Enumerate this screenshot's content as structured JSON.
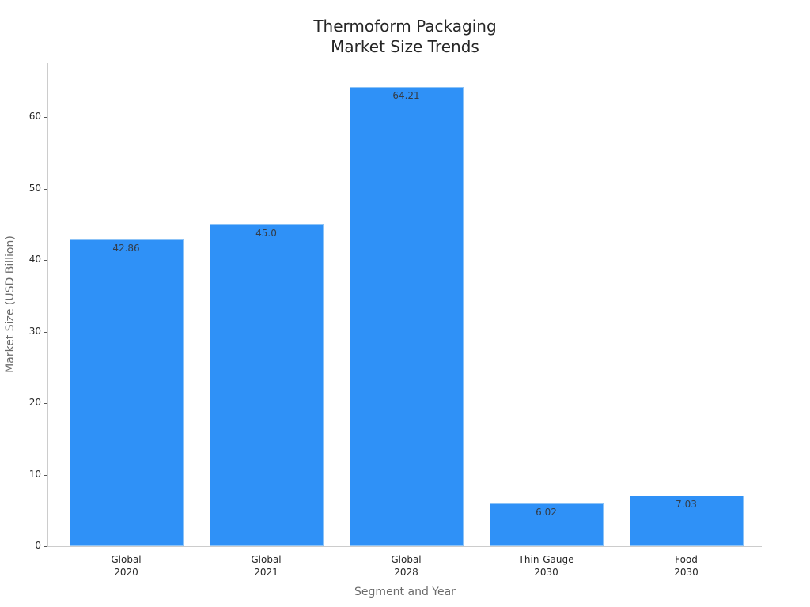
{
  "chart": {
    "title_line1": "Thermoform Packaging",
    "title_line2": "Market Size Trends",
    "xlabel": "Segment and Year",
    "ylabel": "Market Size (USD Billion)",
    "bar_color": "#2f91f7"
  },
  "chart_data": {
    "type": "bar",
    "title": "Thermoform Packaging Market Size Trends",
    "xlabel": "Segment and Year",
    "ylabel": "Market Size (USD Billion)",
    "categories": [
      "Global 2020",
      "Global 2021",
      "Global 2028",
      "Thin-Gauge 2030",
      "Food 2030"
    ],
    "category_lines": [
      [
        "Global",
        "2020"
      ],
      [
        "Global",
        "2021"
      ],
      [
        "Global",
        "2028"
      ],
      [
        "Thin-Gauge",
        "2030"
      ],
      [
        "Food",
        "2030"
      ]
    ],
    "values": [
      42.86,
      45.0,
      64.21,
      6.02,
      7.03
    ],
    "value_labels": [
      "42.86",
      "45.0",
      "64.21",
      "6.02",
      "7.03"
    ],
    "yticks": [
      0,
      10,
      20,
      30,
      40,
      50,
      60
    ],
    "ytick_labels": [
      "0",
      "10",
      "20",
      "30",
      "40",
      "50",
      "60"
    ],
    "ylim": [
      0,
      67.5
    ],
    "grid": false,
    "legend": null
  }
}
